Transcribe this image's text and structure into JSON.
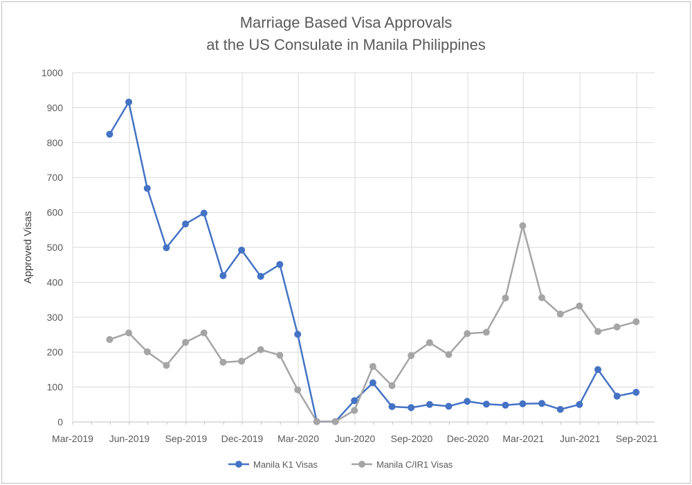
{
  "chart_data": {
    "type": "line",
    "title_lines": [
      "Marriage Based Visa Approvals",
      "at the US Consulate in Manila Philippines"
    ],
    "xlabel": "",
    "ylabel": "Approved Visas",
    "ylim": [
      0,
      1000
    ],
    "yticks": [
      0,
      100,
      200,
      300,
      400,
      500,
      600,
      700,
      800,
      900,
      1000
    ],
    "x_range": [
      "2019-03-01",
      "2021-09-30"
    ],
    "xtick_labels": [
      "Mar-2019",
      "Jun-2019",
      "Sep-2019",
      "Dec-2019",
      "Mar-2020",
      "Jun-2020",
      "Sep-2020",
      "Dec-2020",
      "Mar-2021",
      "Jun-2021",
      "Sep-2021"
    ],
    "xtick_dates": [
      "2019-03-01",
      "2019-06-01",
      "2019-09-01",
      "2019-12-01",
      "2020-03-01",
      "2020-06-01",
      "2020-09-01",
      "2020-12-01",
      "2021-03-01",
      "2021-06-01",
      "2021-09-01"
    ],
    "grid": true,
    "legend_position": "bottom",
    "x": [
      "2019-04-30",
      "2019-05-31",
      "2019-06-30",
      "2019-07-31",
      "2019-08-31",
      "2019-09-30",
      "2019-10-31",
      "2019-11-30",
      "2019-12-31",
      "2020-01-31",
      "2020-02-29",
      "2020-03-31",
      "2020-04-30",
      "2020-05-31",
      "2020-06-30",
      "2020-07-31",
      "2020-08-31",
      "2020-09-30",
      "2020-10-31",
      "2020-11-30",
      "2020-12-31",
      "2021-01-31",
      "2021-02-28",
      "2021-03-31",
      "2021-04-30",
      "2021-05-31",
      "2021-06-30",
      "2021-07-31",
      "2021-08-31",
      "2021-09-30"
    ],
    "series": [
      {
        "name": "Manila K1 Visas",
        "color": "#4472c4",
        "values": [
          824,
          916,
          669,
          499,
          567,
          598,
          419,
          492,
          417,
          451,
          251,
          1,
          1,
          61,
          112,
          44,
          41,
          50,
          45,
          59,
          51,
          48,
          52,
          53,
          36,
          50,
          150,
          74,
          85,
          null
        ]
      },
      {
        "name": "Manila C/IR1 Visas",
        "color": "#a5a5a5",
        "values": [
          236,
          255,
          201,
          162,
          228,
          255,
          171,
          174,
          207,
          191,
          92,
          1,
          1,
          33,
          159,
          104,
          190,
          227,
          193,
          253,
          257,
          355,
          562,
          356,
          309,
          332,
          259,
          272,
          287,
          null
        ]
      }
    ]
  }
}
